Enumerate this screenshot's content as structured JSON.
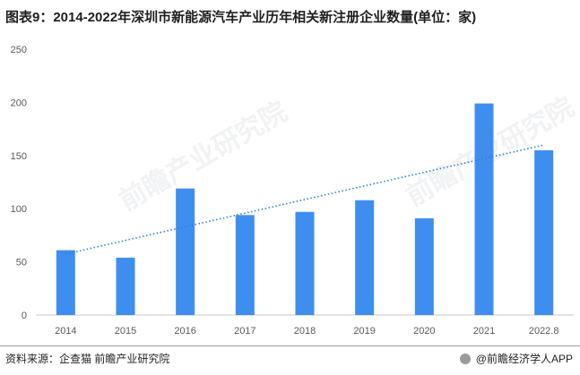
{
  "title": "图表9：2014-2022年深圳市新能源汽车产业历年相关新注册企业数量(单位：家)",
  "footer": {
    "source": "资料来源：企查猫 前瞻产业研究院",
    "brand": "@前瞻经济学人APP"
  },
  "watermark": "前瞻产业研究院",
  "colors": {
    "bar": "#3e8ef0",
    "trend": "#2f7fd8",
    "axis": "#c8c8c8",
    "tick_text": "#595959"
  },
  "chart_data": {
    "type": "bar",
    "categories": [
      "2014",
      "2015",
      "2016",
      "2017",
      "2018",
      "2019",
      "2020",
      "2021",
      "2022.8"
    ],
    "series": [
      {
        "values": [
          61,
          54,
          119,
          94,
          97,
          108,
          91,
          199,
          155
        ]
      }
    ],
    "trendline": {
      "type": "linear",
      "style": "dotted"
    },
    "ylim": [
      0,
      250
    ],
    "yticks": [
      0,
      50,
      100,
      150,
      200,
      250
    ],
    "xlabel": "",
    "ylabel": "",
    "grid": false,
    "legend": "none"
  }
}
